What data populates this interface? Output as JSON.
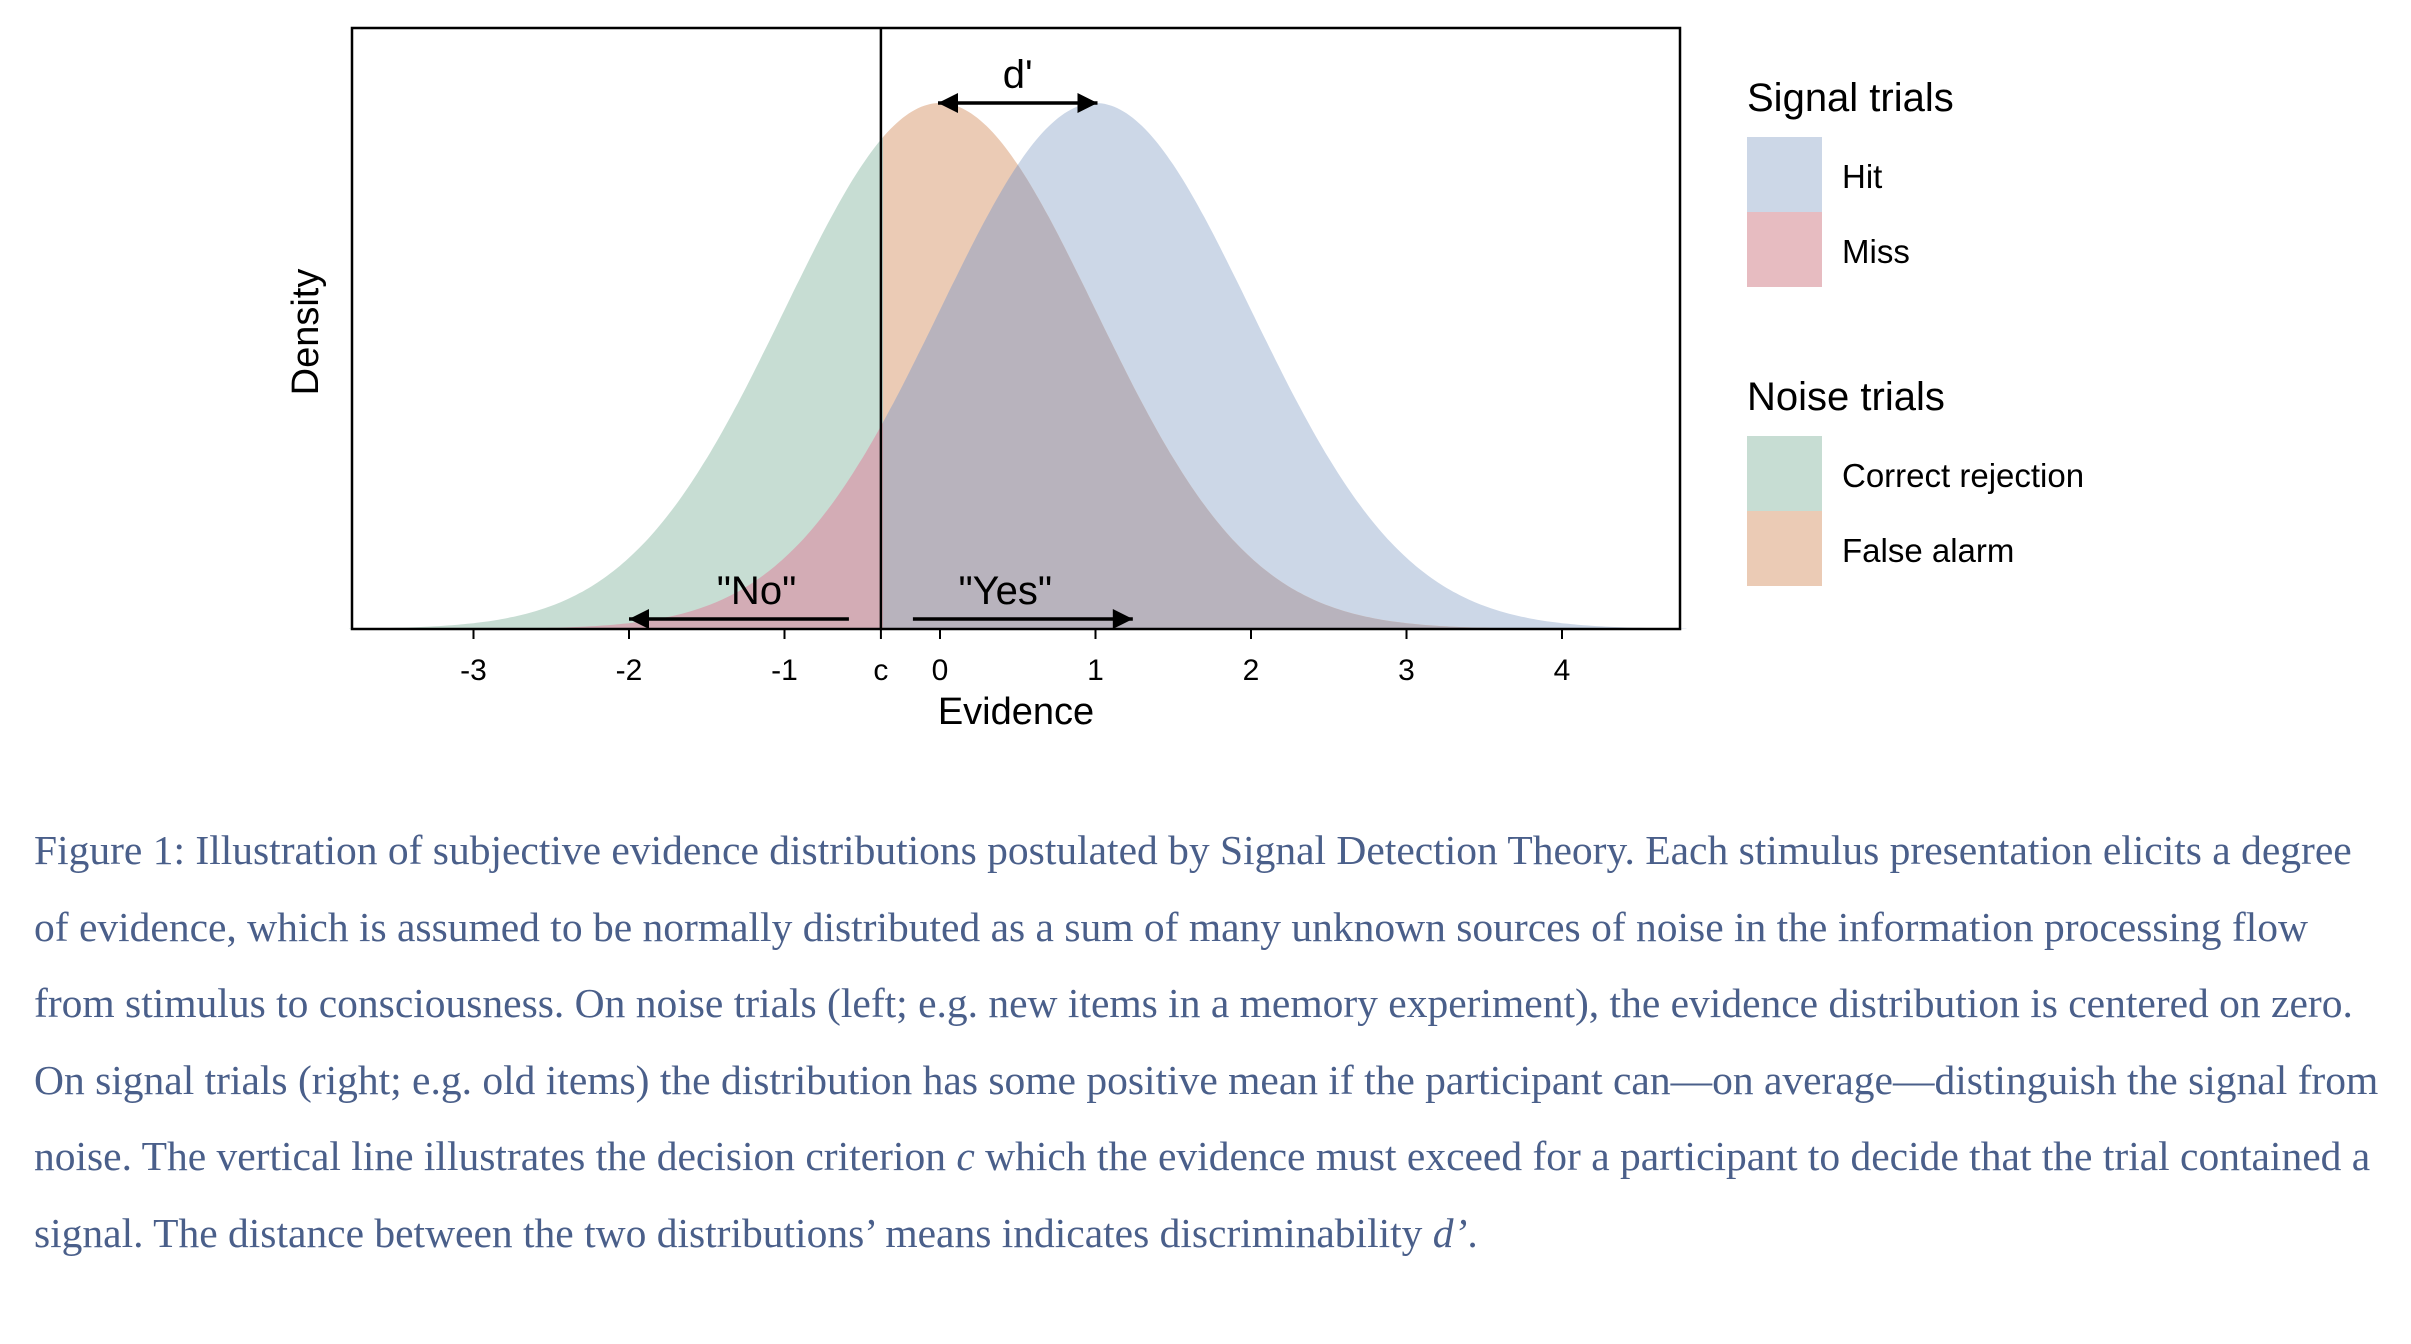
{
  "chart_data": {
    "type": "area",
    "xlabel": "Evidence",
    "ylabel": "Density",
    "xlim": [
      -3.8,
      4.8
    ],
    "x_ticks": [
      -3,
      -2,
      -1,
      0,
      1,
      2,
      3,
      4
    ],
    "x_tick_labels": [
      "-3",
      "-2",
      "-1",
      "0",
      "1",
      "2",
      "3",
      "4"
    ],
    "criterion": {
      "label": "c",
      "value": -0.38
    },
    "series": [
      {
        "name": "Signal trials",
        "mean": 1.0,
        "sd": 1.0,
        "regions": [
          "Hit",
          "Miss"
        ]
      },
      {
        "name": "Noise trials",
        "mean": 0.0,
        "sd": 1.0,
        "regions": [
          "Correct rejection",
          "False alarm"
        ]
      }
    ],
    "annotations": {
      "dprime": "d'",
      "no": "\"No\"",
      "yes": "\"Yes\""
    },
    "legend": {
      "position": "right",
      "groups": [
        {
          "title": "Signal trials",
          "items": [
            {
              "label": "Hit",
              "color": "#ccd7e7"
            },
            {
              "label": "Miss",
              "color": "#e7bcc1"
            }
          ]
        },
        {
          "title": "Noise trials",
          "items": [
            {
              "label": "Correct rejection",
              "color": "#c7ddd3"
            },
            {
              "label": "False alarm",
              "color": "#ebcbb5"
            }
          ]
        }
      ]
    },
    "colors": {
      "hit": "#ccd7e7",
      "miss": "#d3acb5",
      "correct_rejection": "#c7ddd3",
      "false_alarm": "#ebcbb5",
      "overlap_right": "#b8b3bd"
    }
  },
  "caption": {
    "part1": "Figure 1: Illustration of subjective evidence distributions postulated by Signal Detection Theory. Each stimulus presentation elicits a degree of evidence, which is assumed to be normally distributed as a sum of many unknown sources of noise in the information processing flow from stimulus to consciousness. On noise trials (left; e.g. new items in a memory experiment), the evidence distribution is centered on zero. On signal trials (right; e.g. old items) the distribution has some positive mean if the participant can—on average—distinguish the signal from noise. The vertical line illustrates the decision criterion ",
    "c_symbol": "c",
    "part2": " which the evidence must exceed for a participant to decide that the trial contained a signal. The distance between the two distributions’ means indicates discriminability ",
    "d_symbol": "d’",
    "part3": "."
  }
}
